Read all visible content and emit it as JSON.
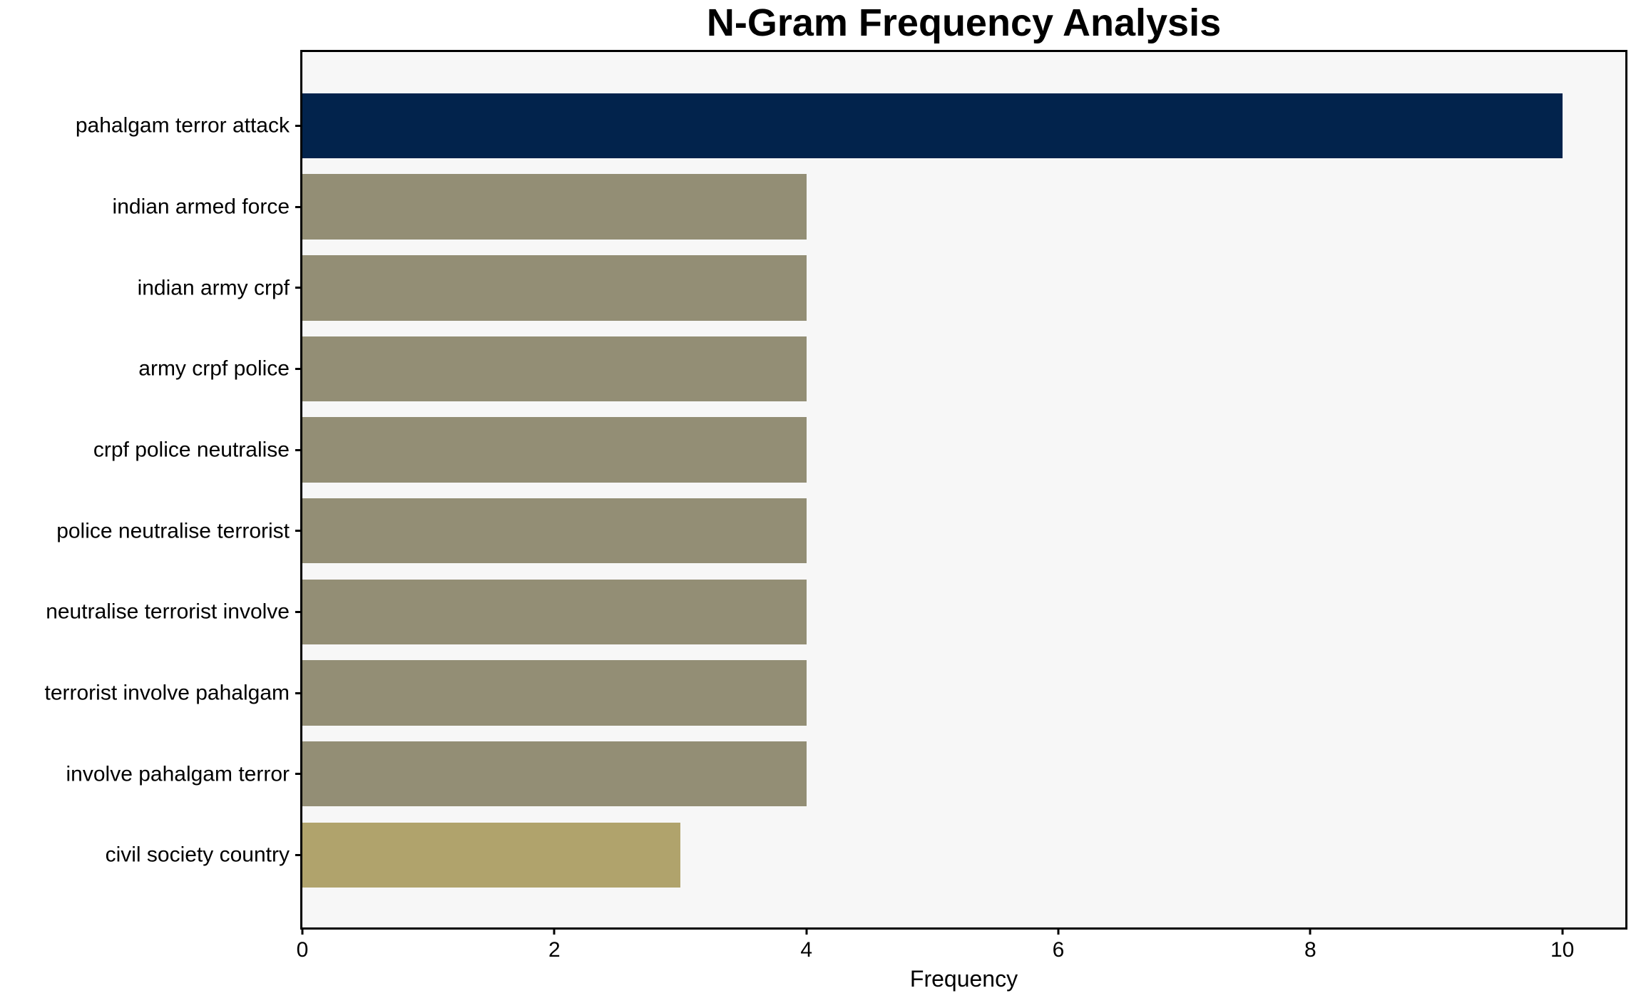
{
  "chart_data": {
    "type": "bar",
    "orientation": "horizontal",
    "title": "N-Gram Frequency Analysis",
    "xlabel": "Frequency",
    "ylabel": "",
    "categories": [
      "pahalgam terror attack",
      "indian armed force",
      "indian army crpf",
      "army crpf police",
      "crpf police neutralise",
      "police neutralise terrorist",
      "neutralise terrorist involve",
      "terrorist involve pahalgam",
      "involve pahalgam terror",
      "civil society country"
    ],
    "values": [
      10,
      4,
      4,
      4,
      4,
      4,
      4,
      4,
      4,
      3
    ],
    "bar_colors": [
      "#02234C",
      "#938E75",
      "#938E75",
      "#938E75",
      "#938E75",
      "#938E75",
      "#938E75",
      "#938E75",
      "#938E75",
      "#B0A36C"
    ],
    "xlim": [
      0,
      10.5
    ],
    "x_ticks": [
      0,
      2,
      4,
      6,
      8,
      10
    ],
    "grid": false,
    "legend": null,
    "colors": {
      "plot_background": "#F7F7F7",
      "figure_background": "#FFFFFF",
      "spine": "#000000",
      "text": "#000000"
    }
  }
}
